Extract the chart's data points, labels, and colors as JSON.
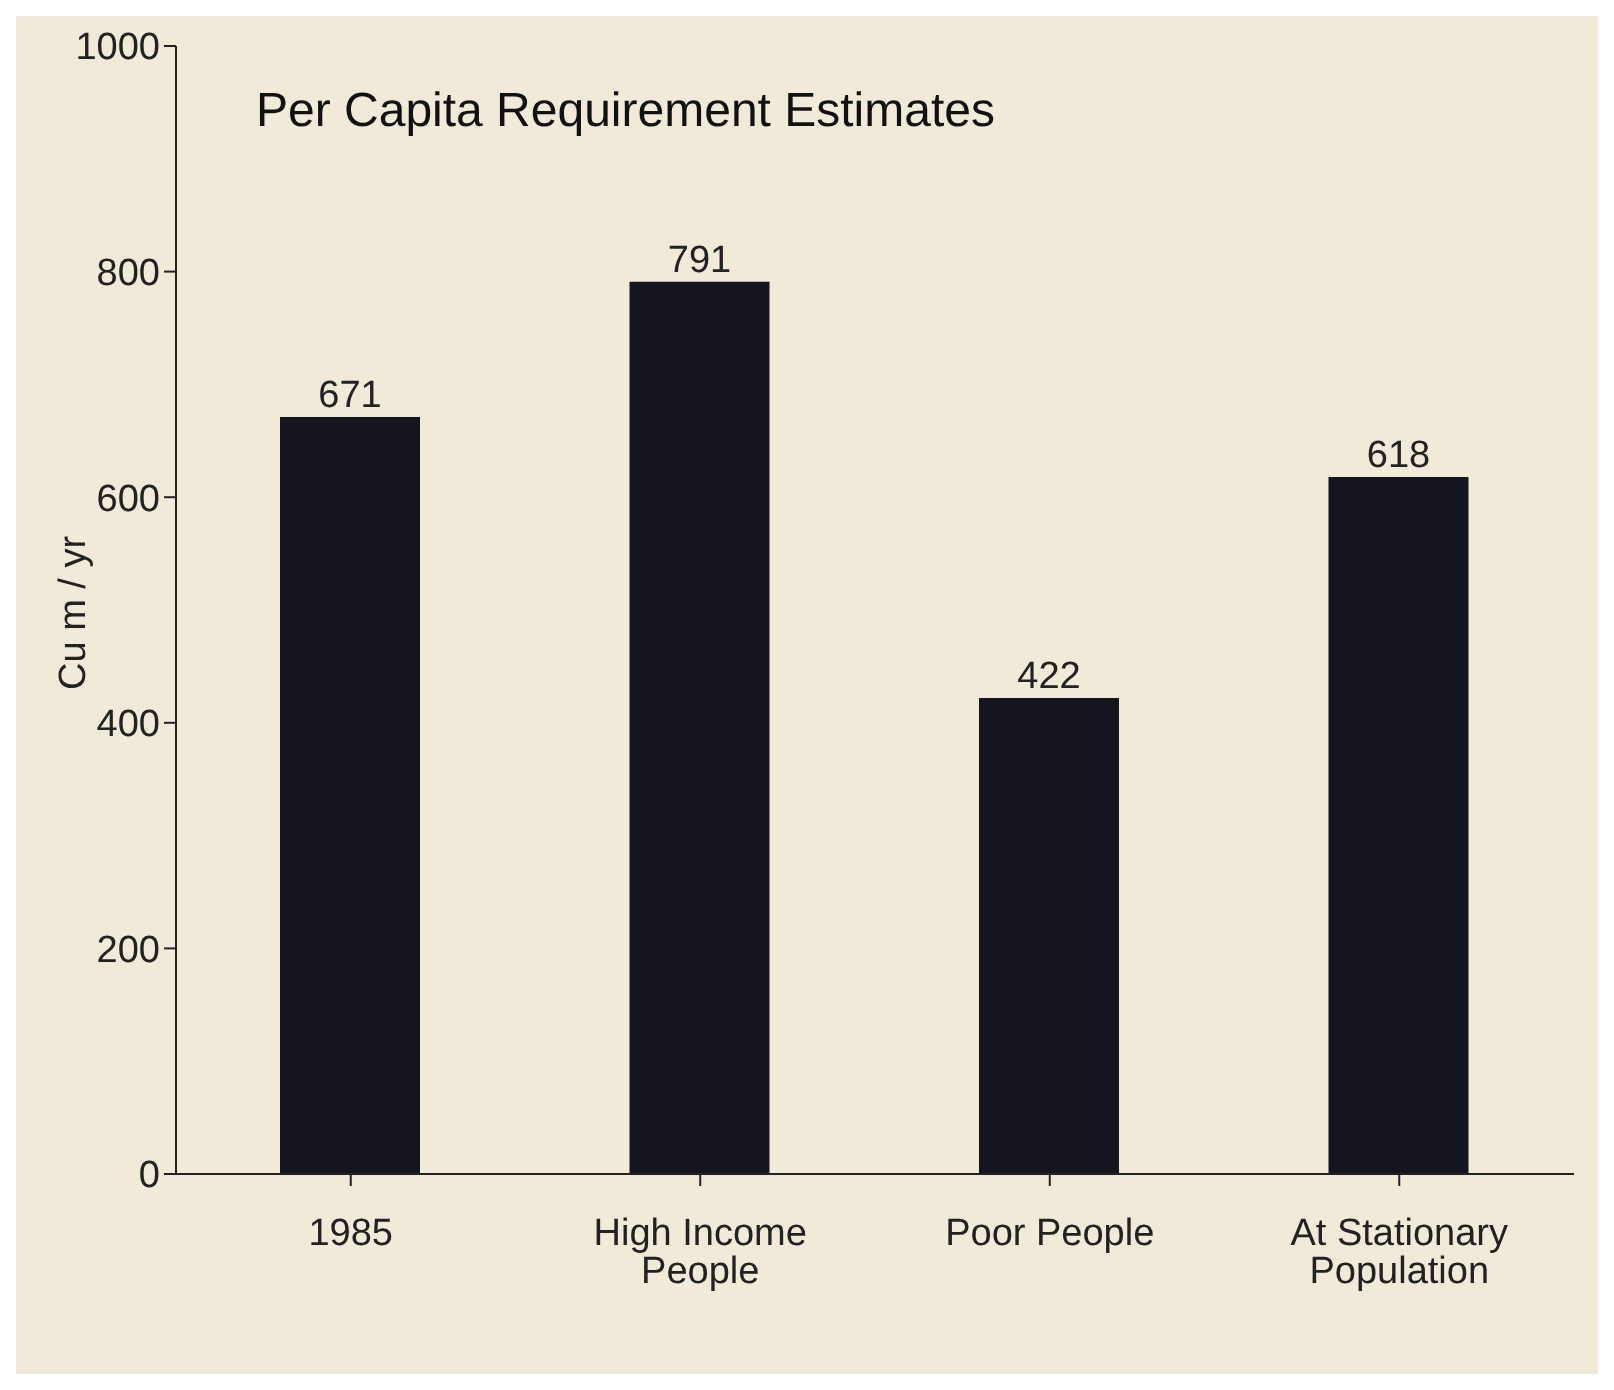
{
  "chart_data": {
    "type": "bar",
    "title": "Per Capita Requirement Estimates",
    "ylabel": "Cu m / yr",
    "categories": [
      "1985",
      "High Income People",
      "Poor People",
      "At Stationary Population"
    ],
    "values": [
      671,
      791,
      422,
      618
    ],
    "color": "#15151f",
    "ylim": [
      0,
      1000
    ],
    "yticks": [
      0,
      200,
      400,
      600,
      800,
      1000
    ],
    "data_labels": true
  }
}
